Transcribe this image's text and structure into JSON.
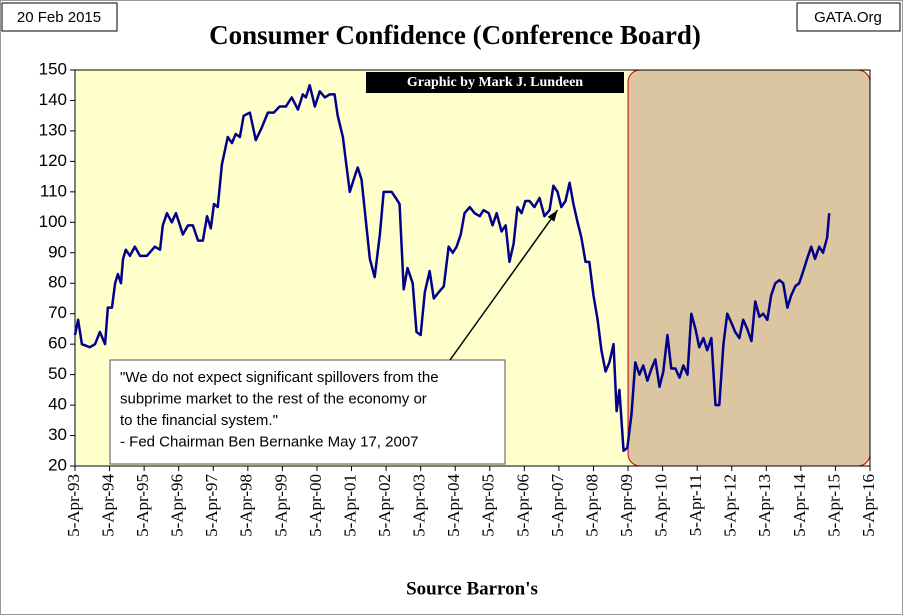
{
  "chart_data": {
    "type": "line",
    "title": "Consumer Confidence (Conference Board)",
    "date_label": "20 Feb 2015",
    "site_label": "GATA.Org",
    "credit": "Graphic by Mark J. Lundeen",
    "xlabel": "Source Barron's",
    "color": "#00008b",
    "x": [
      1993.26,
      1993.35,
      1993.46,
      1993.69,
      1993.84,
      1993.98,
      1994.13,
      1994.21,
      1994.33,
      1994.42,
      1994.5,
      1994.59,
      1994.65,
      1994.73,
      1994.85,
      1994.99,
      1995.14,
      1995.34,
      1995.57,
      1995.72,
      1995.8,
      1995.92,
      1996.06,
      1996.18,
      1996.24,
      1996.38,
      1996.53,
      1996.67,
      1996.82,
      1996.96,
      1997.08,
      1997.19,
      1997.28,
      1997.39,
      1997.51,
      1997.68,
      1997.8,
      1997.91,
      1998.03,
      1998.14,
      1998.32,
      1998.49,
      1998.66,
      1998.84,
      1999.01,
      1999.18,
      1999.36,
      1999.53,
      1999.71,
      1999.85,
      1999.94,
      2000.05,
      2000.2,
      2000.34,
      2000.49,
      2000.63,
      2000.77,
      2000.86,
      2001.01,
      2001.12,
      2001.21,
      2001.35,
      2001.44,
      2001.55,
      2001.67,
      2001.79,
      2001.93,
      2002.08,
      2002.19,
      2002.31,
      2002.42,
      2002.54,
      2002.65,
      2002.77,
      2002.88,
      2003.03,
      2003.14,
      2003.26,
      2003.38,
      2003.52,
      2003.64,
      2003.78,
      2003.93,
      2004.07,
      2004.19,
      2004.3,
      2004.42,
      2004.53,
      2004.68,
      2004.82,
      2004.97,
      2005.08,
      2005.23,
      2005.34,
      2005.46,
      2005.6,
      2005.72,
      2005.83,
      2005.95,
      2006.06,
      2006.18,
      2006.29,
      2006.41,
      2006.55,
      2006.7,
      2006.84,
      2006.99,
      2007.1,
      2007.22,
      2007.33,
      2007.45,
      2007.57,
      2007.68,
      2007.8,
      2007.91,
      2008.03,
      2008.14,
      2008.26,
      2008.38,
      2008.49,
      2008.61,
      2008.72,
      2008.84,
      2008.93,
      2009.01,
      2009.13,
      2009.24,
      2009.36,
      2009.47,
      2009.59,
      2009.7,
      2009.82,
      2009.94,
      2010.05,
      2010.17,
      2010.28,
      2010.4,
      2010.51,
      2010.63,
      2010.75,
      2010.86,
      2010.98,
      2011.09,
      2011.21,
      2011.32,
      2011.44,
      2011.55,
      2011.67,
      2011.79,
      2011.9,
      2012.02,
      2012.13,
      2012.25,
      2012.36,
      2012.48,
      2012.59,
      2012.71,
      2012.83,
      2012.94,
      2013.06,
      2013.17,
      2013.29,
      2013.4,
      2013.52,
      2013.64,
      2013.75,
      2013.87,
      2013.98,
      2014.1,
      2014.21,
      2014.33,
      2014.44,
      2014.56,
      2014.67,
      2014.79,
      2014.9,
      2015.02,
      2015.08
    ],
    "values": [
      63,
      68,
      60,
      59,
      60,
      64,
      60,
      72,
      72,
      80,
      83,
      80,
      88,
      91,
      89,
      92,
      89,
      89,
      92,
      91,
      99,
      103,
      100,
      103,
      101,
      96,
      99,
      99,
      94,
      94,
      102,
      98,
      106,
      105,
      119,
      128,
      126,
      129,
      128,
      135,
      136,
      127,
      131,
      136,
      136,
      138,
      138,
      141,
      137,
      142,
      141,
      145,
      138,
      143,
      141,
      142,
      142,
      135,
      128,
      118,
      110,
      115,
      118,
      114,
      101,
      88,
      82,
      96,
      110,
      110,
      110,
      108,
      106,
      78,
      85,
      80,
      64,
      63,
      77,
      84,
      75,
      77,
      79,
      92,
      90,
      92,
      96,
      103,
      105,
      103,
      102,
      104,
      103,
      99,
      103,
      97,
      99,
      87,
      93,
      105,
      103,
      107,
      107,
      105,
      108,
      102,
      104,
      112,
      110,
      105,
      107,
      113,
      106,
      100,
      95,
      87,
      87,
      76,
      68,
      58,
      51,
      54,
      60,
      38,
      45,
      25,
      26,
      37,
      54,
      50,
      53,
      48,
      52,
      55,
      46,
      51,
      63,
      52,
      52,
      49,
      53,
      50,
      70,
      65,
      59,
      62,
      58,
      62,
      40,
      40,
      60,
      70,
      67,
      64,
      62,
      68,
      65,
      61,
      74,
      69,
      70,
      68,
      76,
      80,
      81,
      80,
      72,
      76,
      79,
      80,
      84,
      88,
      92,
      88,
      92,
      90,
      95,
      103
    ],
    "xlim": [
      1993.26,
      2016.26
    ],
    "xticks": [
      {
        "value": 1993.26,
        "label": "5-Apr-93"
      },
      {
        "value": 1994.26,
        "label": "5-Apr-94"
      },
      {
        "value": 1995.26,
        "label": "5-Apr-95"
      },
      {
        "value": 1996.26,
        "label": "5-Apr-96"
      },
      {
        "value": 1997.26,
        "label": "5-Apr-97"
      },
      {
        "value": 1998.26,
        "label": "5-Apr-98"
      },
      {
        "value": 1999.26,
        "label": "5-Apr-99"
      },
      {
        "value": 2000.26,
        "label": "5-Apr-00"
      },
      {
        "value": 2001.26,
        "label": "5-Apr-01"
      },
      {
        "value": 2002.26,
        "label": "5-Apr-02"
      },
      {
        "value": 2003.26,
        "label": "5-Apr-03"
      },
      {
        "value": 2004.26,
        "label": "5-Apr-04"
      },
      {
        "value": 2005.26,
        "label": "5-Apr-05"
      },
      {
        "value": 2006.26,
        "label": "5-Apr-06"
      },
      {
        "value": 2007.26,
        "label": "5-Apr-07"
      },
      {
        "value": 2008.26,
        "label": "5-Apr-08"
      },
      {
        "value": 2009.26,
        "label": "5-Apr-09"
      },
      {
        "value": 2010.26,
        "label": "5-Apr-10"
      },
      {
        "value": 2011.26,
        "label": "5-Apr-11"
      },
      {
        "value": 2012.26,
        "label": "5-Apr-12"
      },
      {
        "value": 2013.26,
        "label": "5-Apr-13"
      },
      {
        "value": 2014.26,
        "label": "5-Apr-14"
      },
      {
        "value": 2015.26,
        "label": "5-Apr-15"
      },
      {
        "value": 2016.26,
        "label": "5-Apr-16"
      }
    ],
    "ylim": [
      20,
      150
    ],
    "yticks": [
      20,
      30,
      40,
      50,
      60,
      70,
      80,
      90,
      100,
      110,
      120,
      130,
      140,
      150
    ],
    "shaded_region": [
      2009.26,
      2016.26
    ],
    "annotation": {
      "lines": [
        "\"We do not expect significant spillovers from the",
        "subprime market to the rest of the economy or",
        "to the financial system.\"",
        "- Fed Chairman Ben Bernanke  May 17, 2007"
      ],
      "arrow_to": [
        2007.22,
        104
      ]
    }
  }
}
